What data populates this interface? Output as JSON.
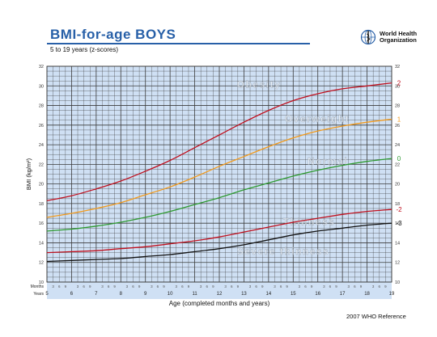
{
  "header": {
    "title": "BMI-for-age  BOYS",
    "subtitle": "5 to 19 years (z-scores)",
    "logo_line1": "World Health",
    "logo_line2": "Organization",
    "reference": "2007  WHO Reference"
  },
  "colors": {
    "title": "#2860a8",
    "plot_background": "#cfe0f4",
    "grid": "#3c3c3c",
    "sd2": "#c0101e",
    "sd1": "#f29a1c",
    "median": "#2e9a31",
    "sd3neg": "#111111"
  },
  "chart_data": {
    "type": "line",
    "title": "BMI-for-age  BOYS",
    "subtitle": "5 to 19 years (z-scores)",
    "xlabel": "Age (completed months and years)",
    "ylabel": "BMI (kg/m²)",
    "xlim": [
      5,
      19
    ],
    "ylim": [
      10,
      32
    ],
    "grid": true,
    "x_row_labels": {
      "months": "Months",
      "years": "Years"
    },
    "month_ticks": [
      "3",
      "6",
      "9"
    ],
    "years": [
      5,
      6,
      7,
      8,
      9,
      10,
      11,
      12,
      13,
      14,
      15,
      16,
      17,
      18,
      19
    ],
    "y_ticks": [
      10,
      12,
      14,
      16,
      18,
      20,
      22,
      24,
      26,
      28,
      30,
      32
    ],
    "zones": [
      "Obesity",
      "Overweight",
      "Normal",
      "Thinness",
      "Severe thinness"
    ],
    "x": [
      5,
      6,
      7,
      8,
      9,
      10,
      11,
      12,
      13,
      14,
      15,
      16,
      17,
      18,
      19
    ],
    "series": [
      {
        "name": "2",
        "color": "#c0101e",
        "values": [
          18.3,
          18.8,
          19.5,
          20.3,
          21.3,
          22.4,
          23.7,
          25.0,
          26.3,
          27.5,
          28.5,
          29.2,
          29.7,
          30.0,
          30.3
        ]
      },
      {
        "name": "1",
        "color": "#f29a1c",
        "values": [
          16.6,
          17.0,
          17.5,
          18.1,
          18.9,
          19.7,
          20.7,
          21.8,
          22.8,
          23.8,
          24.7,
          25.4,
          25.9,
          26.3,
          26.6
        ]
      },
      {
        "name": "0",
        "color": "#2e9a31",
        "values": [
          15.2,
          15.4,
          15.7,
          16.1,
          16.6,
          17.2,
          17.9,
          18.6,
          19.4,
          20.1,
          20.8,
          21.4,
          21.9,
          22.3,
          22.6
        ]
      },
      {
        "name": "-2",
        "color": "#c0101e",
        "values": [
          13.0,
          13.1,
          13.2,
          13.4,
          13.6,
          13.9,
          14.2,
          14.6,
          15.1,
          15.6,
          16.1,
          16.5,
          16.9,
          17.2,
          17.4
        ]
      },
      {
        "name": "-3",
        "color": "#111111",
        "values": [
          12.1,
          12.2,
          12.3,
          12.4,
          12.6,
          12.8,
          13.1,
          13.4,
          13.8,
          14.3,
          14.8,
          15.2,
          15.5,
          15.8,
          16.0
        ]
      }
    ]
  }
}
